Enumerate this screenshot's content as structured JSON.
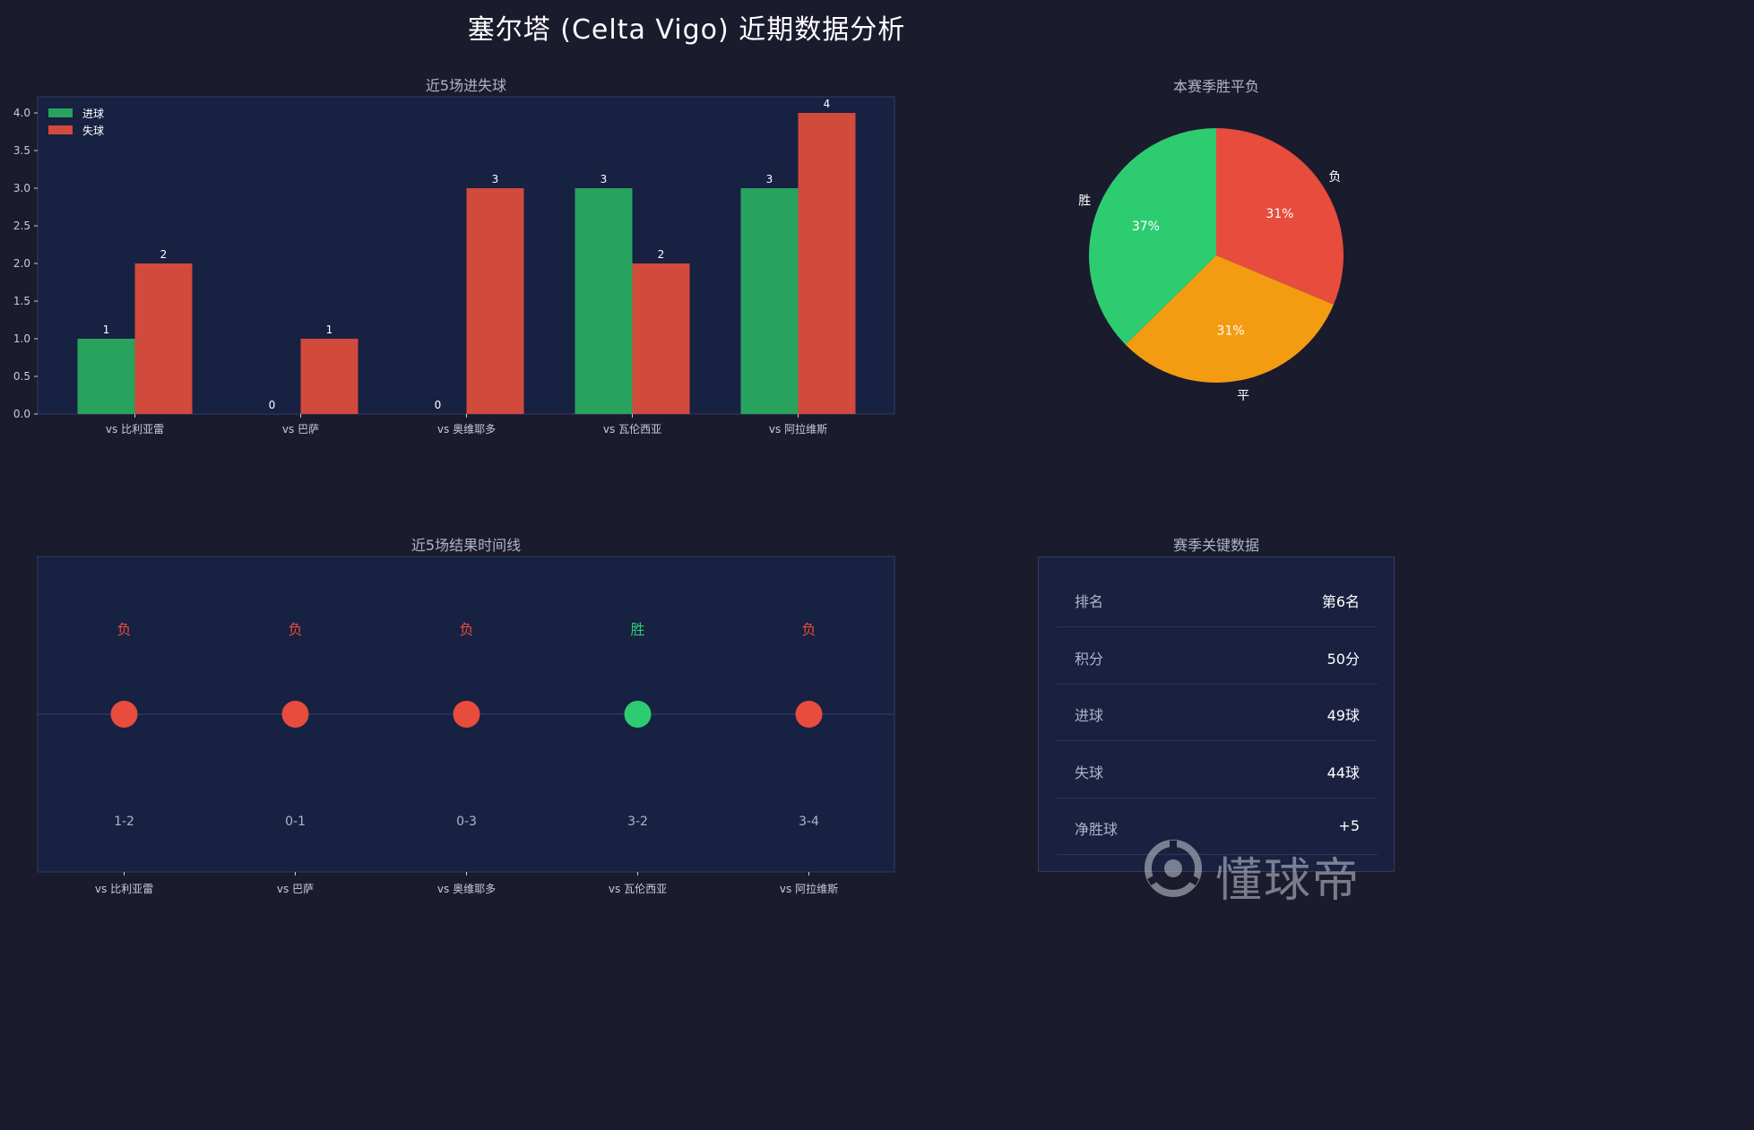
{
  "title": "塞尔塔 (Celta Vigo)  近期数据分析",
  "colors": {
    "background": "#1b1b2e",
    "panel": "#1a2140",
    "win": "#2ecc71",
    "loss": "#e74c3c",
    "draw": "#f39c12",
    "goals_bar": "#27a35e",
    "conceded_bar": "#d14a3c"
  },
  "chart_data": [
    {
      "type": "bar",
      "title": "近5场进失球",
      "categories": [
        "vs 比利亚雷",
        "vs 巴萨",
        "vs 奥维耶多",
        "vs 瓦伦西亚",
        "vs 阿拉维斯"
      ],
      "series": [
        {
          "name": "进球",
          "values": [
            1,
            0,
            0,
            3,
            3
          ]
        },
        {
          "name": "失球",
          "values": [
            2,
            1,
            3,
            2,
            4
          ]
        }
      ],
      "ylim": [
        0,
        4.0
      ],
      "yticks": [
        "0.0",
        "0.5",
        "1.0",
        "1.5",
        "2.0",
        "2.5",
        "3.0",
        "3.5",
        "4.0"
      ],
      "legend": "top-left",
      "grid": false
    },
    {
      "type": "pie",
      "title": "本赛季胜平负",
      "slices": [
        {
          "label": "负",
          "percent": 31,
          "display": "31%"
        },
        {
          "label": "平",
          "percent": 31,
          "display": "31%"
        },
        {
          "label": "胜",
          "percent": 37,
          "display": "37%"
        }
      ]
    },
    {
      "type": "scatter",
      "title": "近5场结果时间线",
      "categories": [
        "vs 比利亚雷",
        "vs 巴萨",
        "vs 奥维耶多",
        "vs 瓦伦西亚",
        "vs 阿拉维斯"
      ],
      "results": [
        "负",
        "负",
        "负",
        "胜",
        "负"
      ],
      "scores": [
        "1-2",
        "0-1",
        "0-3",
        "3-2",
        "3-4"
      ]
    },
    {
      "type": "table",
      "title": "赛季关键数据",
      "rows": [
        {
          "label": "排名",
          "value": "第6名"
        },
        {
          "label": "积分",
          "value": "50分"
        },
        {
          "label": "进球",
          "value": "49球"
        },
        {
          "label": "失球",
          "value": "44球"
        },
        {
          "label": "净胜球",
          "value": "+5"
        }
      ]
    }
  ],
  "watermark": {
    "text": "懂球帝",
    "icon": "football-logo-icon"
  }
}
